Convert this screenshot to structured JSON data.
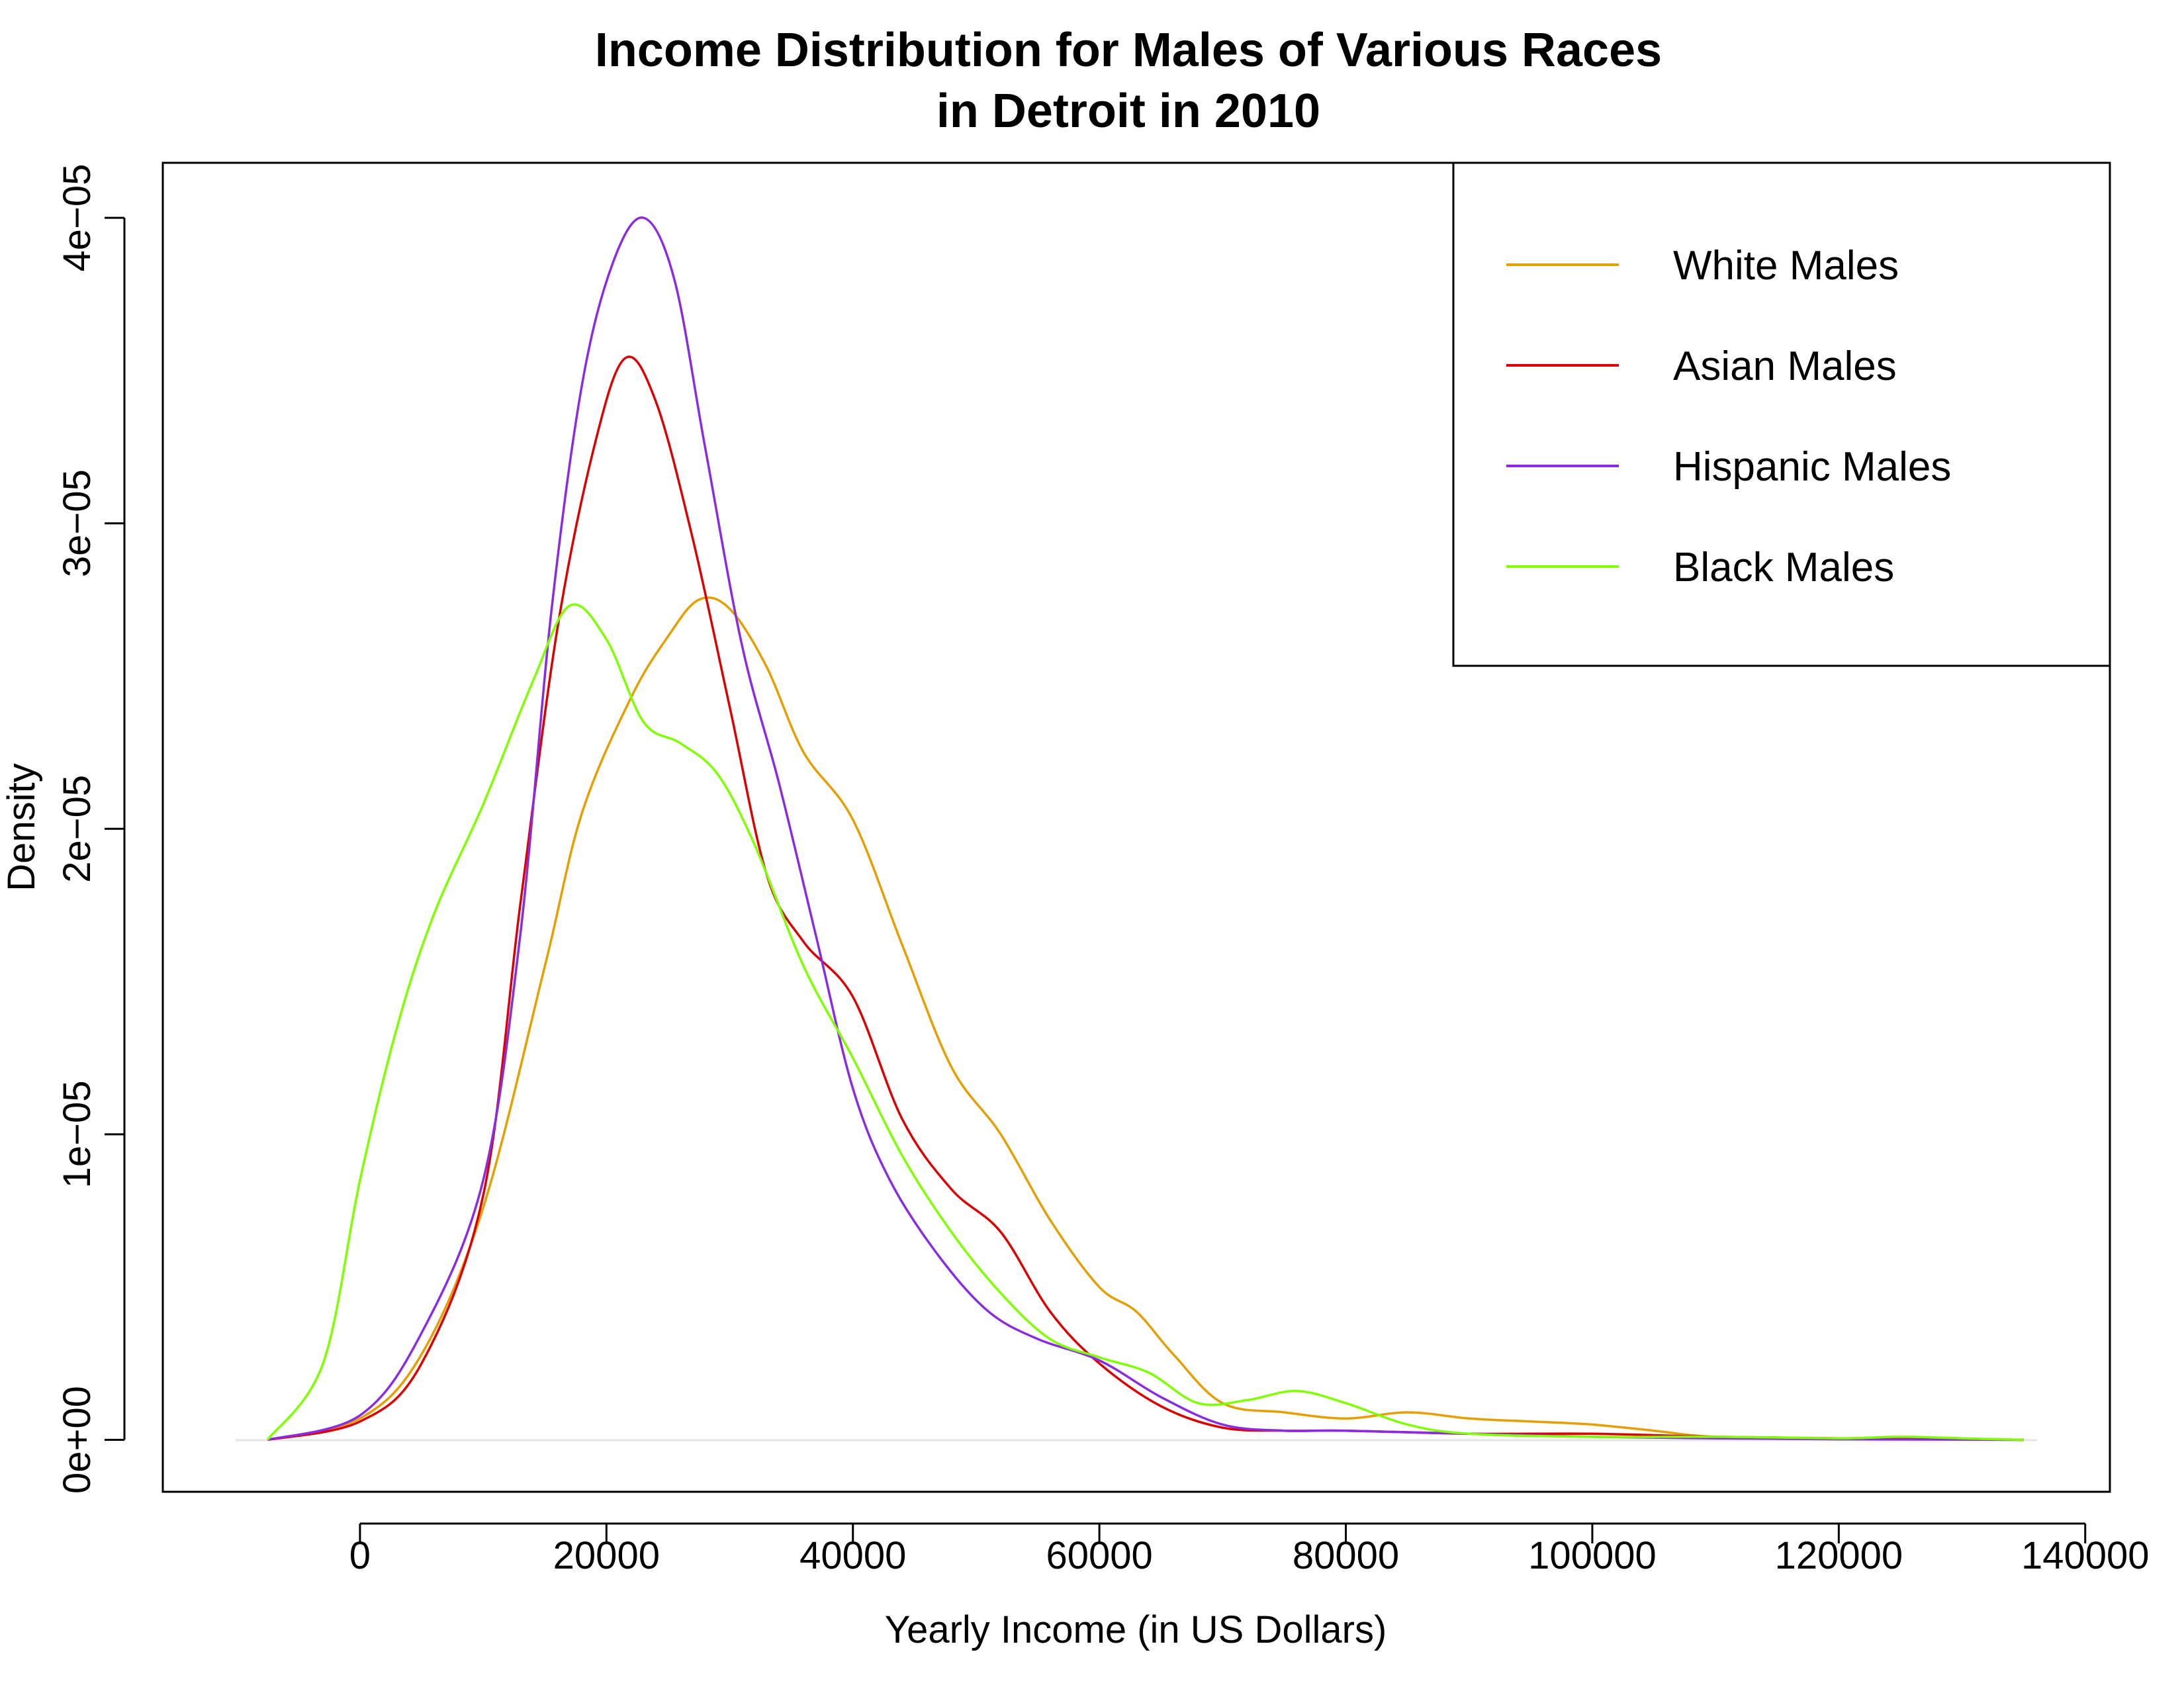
{
  "chart_data": {
    "type": "line",
    "title_lines": [
      "Income Distribution for Males of Various Races",
      "in Detroit in 2010"
    ],
    "xlabel": "Yearly Income (in US Dollars)",
    "ylabel": "Density",
    "xlim": [
      -16000,
      142000
    ],
    "ylim": [
      -1.7e-06,
      4.18e-05
    ],
    "x_ticks": [
      0,
      20000,
      40000,
      60000,
      80000,
      100000,
      120000,
      140000
    ],
    "x_tick_labels": [
      "0",
      "20000",
      "40000",
      "60000",
      "80000",
      "100000",
      "120000",
      "140000"
    ],
    "y_ticks": [
      0,
      1e-05,
      2e-05,
      3e-05,
      4e-05
    ],
    "y_tick_labels": [
      "0e+00",
      "1e−05",
      "2e−05",
      "3e−05",
      "4e−05"
    ],
    "grid": false,
    "legend_position": "top-right",
    "series": [
      {
        "name": "White Males",
        "color": "#E69F00",
        "x": [
          -7500,
          0,
          5000,
          10000,
          15000,
          18000,
          22000,
          25000,
          27500,
          30000,
          33000,
          36000,
          40000,
          44000,
          48000,
          52000,
          56000,
          60000,
          63000,
          66000,
          70000,
          75000,
          80000,
          85000,
          90000,
          95000,
          100000,
          105000,
          110000,
          120000,
          130000,
          135000
        ],
        "y": [
          0,
          7e-07,
          2.8e-06,
          7.6e-06,
          1.55e-05,
          2.05e-05,
          2.43e-05,
          2.63e-05,
          2.75e-05,
          2.72e-05,
          2.53e-05,
          2.25e-05,
          2.03e-05,
          1.62e-05,
          1.22e-05,
          1e-05,
          7.2e-06,
          5e-06,
          4.2e-06,
          2.8e-06,
          1.2e-06,
          9e-07,
          7e-07,
          9e-07,
          7e-07,
          6e-07,
          5e-07,
          3e-07,
          1e-07,
          5e-08,
          2e-08,
          0
        ]
      },
      {
        "name": "Asian Males",
        "color": "#DD0000",
        "x": [
          -7500,
          0,
          5000,
          10000,
          13000,
          16000,
          19000,
          21500,
          24000,
          27000,
          30000,
          33000,
          36000,
          40000,
          44000,
          48000,
          52000,
          56000,
          60000,
          65000,
          70000,
          75000,
          80000,
          90000,
          100000,
          110000,
          120000,
          130000,
          135000
        ],
        "y": [
          0,
          6e-07,
          2.5e-06,
          8e-06,
          1.75e-05,
          2.65e-05,
          3.25e-05,
          3.54e-05,
          3.4e-05,
          2.95e-05,
          2.4e-05,
          1.85e-05,
          1.63e-05,
          1.45e-05,
          1.05e-05,
          8.2e-06,
          6.8e-06,
          4.2e-06,
          2.5e-06,
          1.1e-06,
          4e-07,
          3e-07,
          3e-07,
          2e-07,
          2e-07,
          1e-07,
          5e-08,
          2e-08,
          0
        ]
      },
      {
        "name": "Hispanic Males",
        "color": "#8A2BE2",
        "x": [
          -7500,
          0,
          5000,
          10000,
          13000,
          15500,
          18000,
          20500,
          23000,
          25500,
          28000,
          31000,
          34000,
          37000,
          40000,
          43000,
          47000,
          51000,
          55000,
          60000,
          65000,
          70000,
          75000,
          80000,
          90000,
          100000,
          110000,
          120000,
          130000,
          135000
        ],
        "y": [
          0,
          8e-07,
          3.5e-06,
          8.5e-06,
          1.65e-05,
          2.7e-05,
          3.45e-05,
          3.85e-05,
          4e-05,
          3.8e-05,
          3.25e-05,
          2.6e-05,
          2.15e-05,
          1.65e-05,
          1.15e-05,
          8.5e-06,
          6e-06,
          4.2e-06,
          3.3e-06,
          2.6e-06,
          1.4e-06,
          5e-07,
          3e-07,
          3e-07,
          2e-07,
          1e-07,
          5e-08,
          2e-08,
          1e-08,
          0
        ]
      },
      {
        "name": "Black Males",
        "color": "#7FFF00",
        "x": [
          -7500,
          -3000,
          0,
          3000,
          6000,
          10000,
          14000,
          17000,
          20000,
          23000,
          26000,
          29000,
          32000,
          36000,
          40000,
          44000,
          48000,
          52000,
          56000,
          60000,
          64000,
          68000,
          72000,
          76000,
          80000,
          85000,
          90000,
          100000,
          110000,
          120000,
          125000,
          130000,
          135000
        ],
        "y": [
          0,
          2.5e-06,
          8.5e-06,
          1.35e-05,
          1.72e-05,
          2.08e-05,
          2.48e-05,
          2.73e-05,
          2.62e-05,
          2.35e-05,
          2.28e-05,
          2.18e-05,
          1.95e-05,
          1.55e-05,
          1.25e-05,
          9.3e-06,
          6.8e-06,
          4.8e-06,
          3.3e-06,
          2.7e-06,
          2.2e-06,
          1.2e-06,
          1.3e-06,
          1.6e-06,
          1.2e-06,
          5e-07,
          2e-07,
          1e-07,
          1e-07,
          5e-08,
          1e-07,
          5e-08,
          0
        ]
      }
    ]
  }
}
